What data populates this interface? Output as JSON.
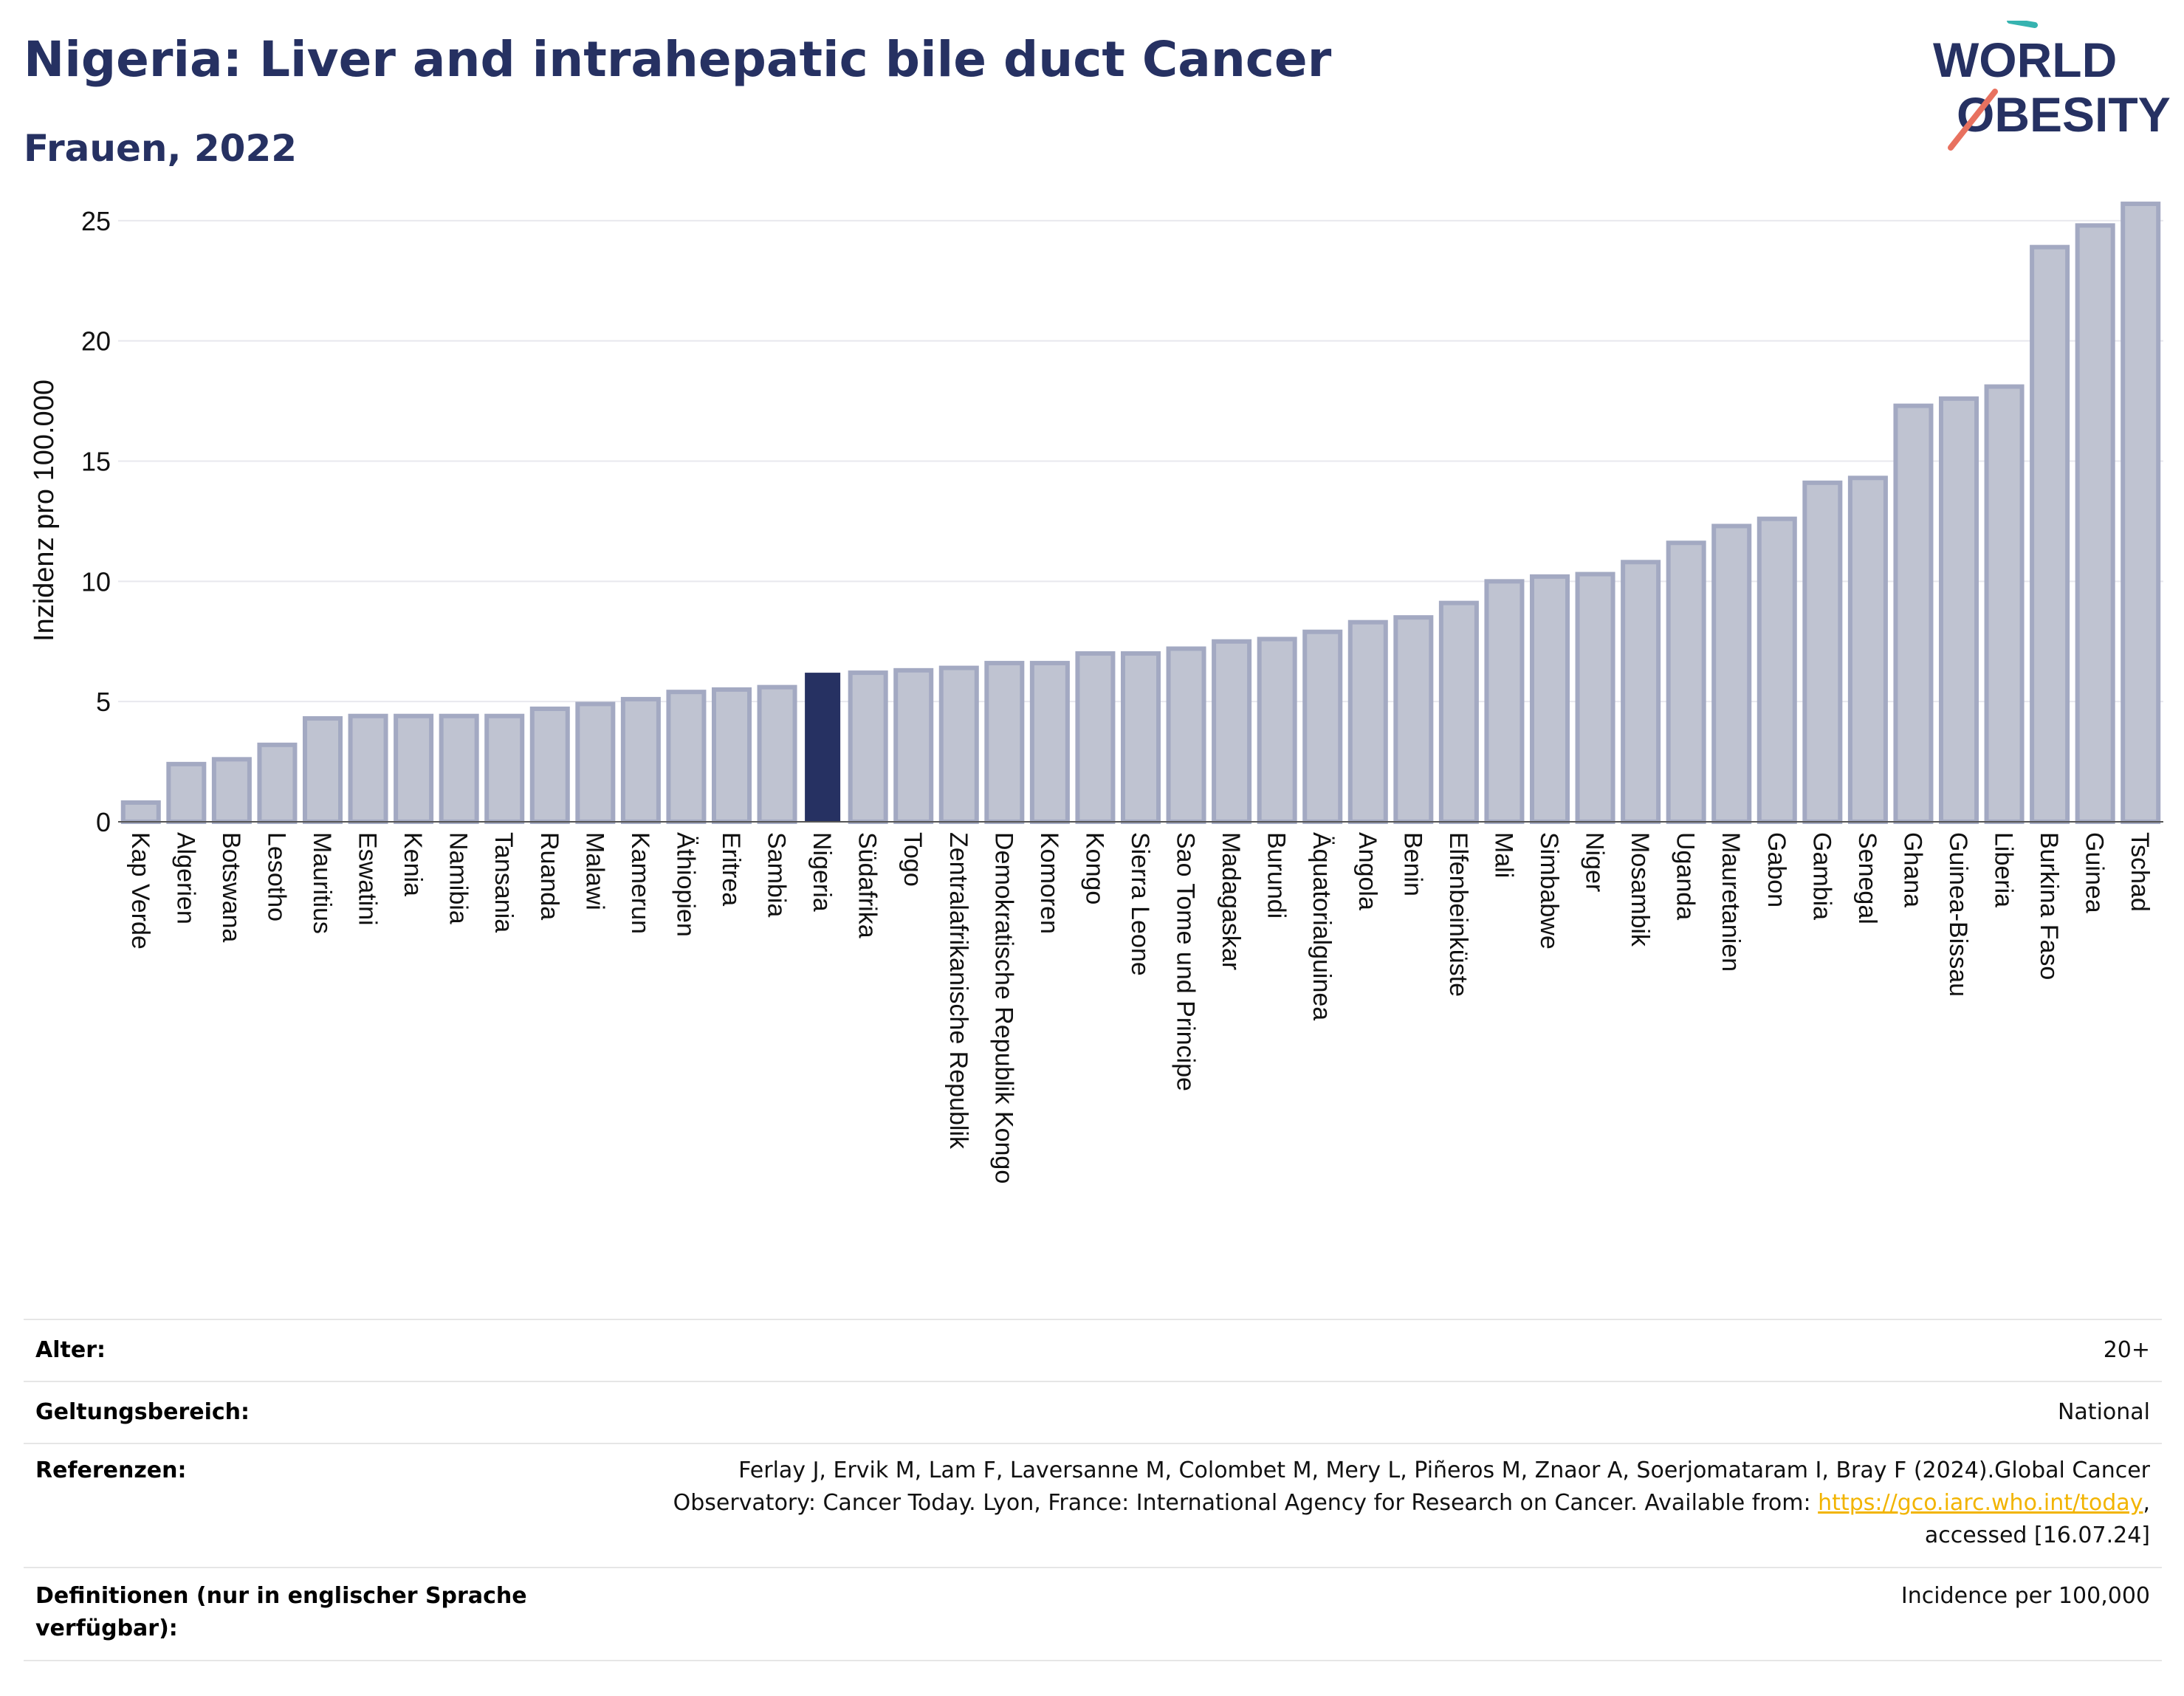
{
  "header": {
    "title": "Nigeria: Liver and intrahepatic bile duct Cancer",
    "subtitle": "Frauen, 2022"
  },
  "logo": {
    "line1": "WORLD",
    "line2": "OBESITY"
  },
  "chart_data": {
    "type": "bar",
    "ylabel": "Inzidenz pro 100.000",
    "ylim": [
      0,
      26.5
    ],
    "yticks": [
      0,
      5,
      10,
      15,
      20,
      25
    ],
    "grid": true,
    "highlight": "Nigeria",
    "colors": {
      "bar": "#bfc3d1",
      "bar_edge": "#a3a9c2",
      "highlight": "#263162"
    },
    "categories": [
      "Kap Verde",
      "Algerien",
      "Botswana",
      "Lesotho",
      "Mauritius",
      "Eswatini",
      "Kenia",
      "Namibia",
      "Tansania",
      "Ruanda",
      "Malawi",
      "Kamerun",
      "Äthiopien",
      "Eritrea",
      "Sambia",
      "Nigeria",
      "Südafrika",
      "Togo",
      "Zentralafrikanische Republik",
      "Demokratische Republik Kongo",
      "Komoren",
      "Kongo",
      "Sierra Leone",
      "Sao Tome und Principe",
      "Madagaskar",
      "Burundi",
      "Äquatorialguinea",
      "Angola",
      "Benin",
      "Elfenbeinküste",
      "Mali",
      "Simbabwe",
      "Niger",
      "Mosambik",
      "Uganda",
      "Mauretanien",
      "Gabon",
      "Gambia",
      "Senegal",
      "Ghana",
      "Guinea-Bissau",
      "Liberia",
      "Burkina Faso",
      "Guinea",
      "Tschad"
    ],
    "values": [
      0.8,
      2.4,
      2.6,
      3.2,
      4.3,
      4.4,
      4.4,
      4.4,
      4.4,
      4.7,
      4.9,
      5.1,
      5.4,
      5.5,
      5.6,
      6.2,
      6.2,
      6.3,
      6.4,
      6.6,
      6.6,
      7.0,
      7.0,
      7.2,
      7.5,
      7.6,
      7.9,
      8.3,
      8.5,
      9.1,
      10.0,
      10.2,
      10.3,
      10.8,
      11.6,
      12.3,
      12.6,
      14.1,
      14.3,
      17.3,
      17.6,
      18.1,
      23.9,
      24.8,
      25.7
    ]
  },
  "info": {
    "age_label": "Alter:",
    "age_value": "20+",
    "scope_label": "Geltungsbereich:",
    "scope_value": "National",
    "ref_label": "Referenzen:",
    "ref_line1": "Ferlay J, Ervik M, Lam F, Laversanne M, Colombet M, Mery L, Piñeros M, Znaor A, Soerjomataram I, Bray F (2024).Global Cancer",
    "ref_line2": "Observatory: Cancer Today. Lyon, France: International Agency for Research on Cancer. Available from: ",
    "ref_link": "https://gco.iarc.who.int/today",
    "ref_line2_end": ",",
    "ref_line3": "accessed [16.07.24]",
    "def_label": "Definitionen (nur in englischer Sprache verfügbar):",
    "def_value": "Incidence per 100,000"
  }
}
